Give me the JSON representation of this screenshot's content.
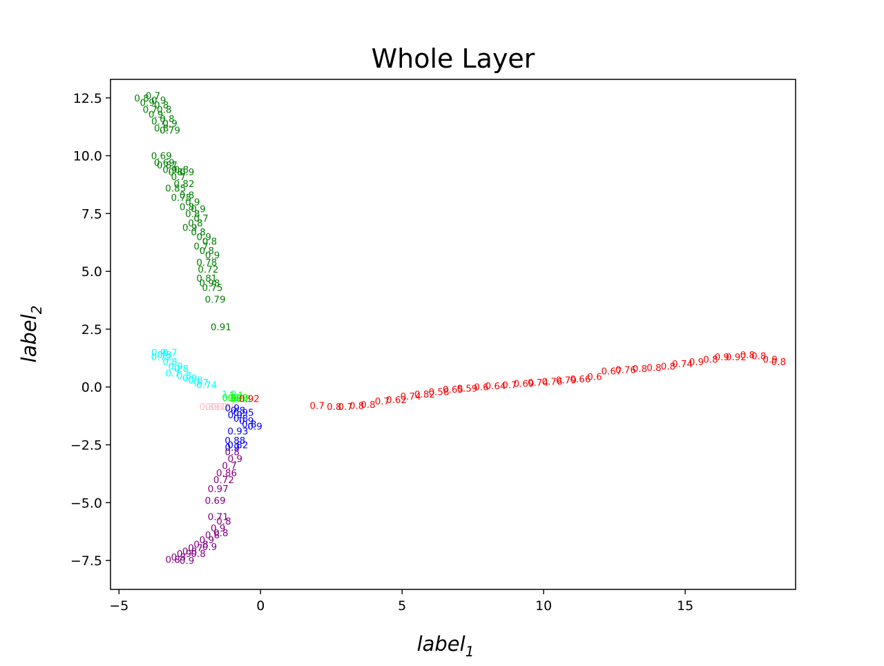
{
  "chart_data": {
    "type": "scatter",
    "title": "Whole Layer",
    "xlabel": "label",
    "xlabel_sub": "1",
    "ylabel": "label",
    "ylabel_sub": "2",
    "xlim": [
      -5.3,
      18.9
    ],
    "ylim": [
      -8.75,
      13.3
    ],
    "xticks": [
      -5,
      0,
      5,
      10,
      15
    ],
    "xtick_labels": [
      "−5",
      "0",
      "5",
      "10",
      "15"
    ],
    "yticks": [
      -7.5,
      -5.0,
      -2.5,
      0.0,
      2.5,
      5.0,
      7.5,
      10.0,
      12.5
    ],
    "ytick_labels": [
      "−7.5",
      "−5.0",
      "−2.5",
      "0.0",
      "2.5",
      "5.0",
      "7.5",
      "10.0",
      "12.5"
    ],
    "grid": false,
    "legend": "none",
    "series": [
      {
        "color": "#008000",
        "points": [
          [
            -4.2,
            12.5,
            0.8
          ],
          [
            -4.0,
            12.3,
            0.9
          ],
          [
            -3.8,
            12.6,
            0.7
          ],
          [
            -3.6,
            12.4,
            0.9
          ],
          [
            -3.5,
            12.2,
            0.8
          ],
          [
            -3.9,
            12.0,
            0.7
          ],
          [
            -3.4,
            12.0,
            0.8
          ],
          [
            -3.7,
            11.8,
            0.9
          ],
          [
            -3.3,
            11.6,
            0.8
          ],
          [
            -3.6,
            11.5,
            0.7
          ],
          [
            -3.2,
            11.4,
            0.9
          ],
          [
            -3.5,
            11.2,
            0.8
          ],
          [
            -3.2,
            11.1,
            0.79
          ],
          [
            -3.5,
            10.0,
            0.69
          ],
          [
            -3.4,
            9.7,
            0.69
          ],
          [
            -3.3,
            9.6,
            0.87
          ],
          [
            -3.2,
            9.4,
            0.9
          ],
          [
            -3.0,
            9.3,
            0.8
          ],
          [
            -2.8,
            9.4,
            0.8
          ],
          [
            -2.6,
            9.3,
            0.9
          ],
          [
            -2.9,
            9.1,
            0.7
          ],
          [
            -2.7,
            8.8,
            0.82
          ],
          [
            -3.0,
            8.6,
            0.85
          ],
          [
            -2.6,
            8.3,
            0.8
          ],
          [
            -2.8,
            8.2,
            0.75
          ],
          [
            -2.4,
            8.0,
            0.9
          ],
          [
            -2.6,
            7.8,
            0.8
          ],
          [
            -2.2,
            7.7,
            0.9
          ],
          [
            -2.4,
            7.5,
            0.8
          ],
          [
            -2.1,
            7.3,
            0.7
          ],
          [
            -2.3,
            7.1,
            0.8
          ],
          [
            -2.5,
            6.9,
            0.9
          ],
          [
            -2.2,
            6.7,
            0.8
          ],
          [
            -2.0,
            6.5,
            0.9
          ],
          [
            -1.8,
            6.3,
            0.8
          ],
          [
            -2.1,
            6.1,
            0.7
          ],
          [
            -1.9,
            5.9,
            0.8
          ],
          [
            -1.7,
            5.7,
            0.9
          ],
          [
            -1.9,
            5.4,
            0.78
          ],
          [
            -1.85,
            5.1,
            0.72
          ],
          [
            -1.9,
            4.7,
            0.81
          ],
          [
            -1.8,
            4.5,
            0.98
          ],
          [
            -1.7,
            4.3,
            0.75
          ],
          [
            -1.6,
            3.8,
            0.79
          ],
          [
            -1.4,
            2.6,
            0.91
          ]
        ]
      },
      {
        "color": "#00ffff",
        "points": [
          [
            -3.6,
            1.5,
            0.9
          ],
          [
            -3.4,
            1.4,
            0.8
          ],
          [
            -3.2,
            1.5,
            0.7
          ],
          [
            -3.5,
            1.3,
            0.72
          ],
          [
            -3.2,
            1.1,
            0.8
          ],
          [
            -3.0,
            0.9,
            0.9
          ],
          [
            -2.8,
            0.8,
            0.8
          ],
          [
            -3.1,
            0.6,
            0.7
          ],
          [
            -2.7,
            0.5,
            0.8
          ],
          [
            -2.5,
            0.4,
            0.9
          ],
          [
            -2.3,
            0.3,
            0.8
          ],
          [
            -2.1,
            0.2,
            0.7
          ],
          [
            -1.9,
            0.1,
            0.74
          ],
          [
            -1.1,
            -0.3,
            1.2
          ]
        ]
      },
      {
        "color": "#00ff00",
        "points": [
          [
            -1.1,
            -0.45,
            0.9
          ],
          [
            -1.0,
            -0.5,
            1.0
          ],
          [
            -0.9,
            -0.45,
            0.9
          ],
          [
            -0.8,
            -0.5,
            0.8
          ],
          [
            -0.7,
            -0.45,
            0.9
          ],
          [
            -0.85,
            -0.35,
            1.1
          ],
          [
            -0.6,
            -0.5,
            0.8
          ]
        ]
      },
      {
        "color": "#ff0000",
        "points": [
          [
            -0.4,
            -0.5,
            0.92
          ],
          [
            2.0,
            -0.8,
            0.7
          ],
          [
            2.6,
            -0.85,
            0.8
          ],
          [
            3.0,
            -0.85,
            0.7
          ],
          [
            3.4,
            -0.8,
            0.8
          ],
          [
            3.8,
            -0.75,
            0.8
          ],
          [
            4.3,
            -0.6,
            0.7
          ],
          [
            4.8,
            -0.55,
            0.62
          ],
          [
            5.3,
            -0.4,
            0.74
          ],
          [
            5.8,
            -0.3,
            0.82
          ],
          [
            6.3,
            -0.2,
            0.58
          ],
          [
            6.8,
            -0.1,
            0.65
          ],
          [
            7.3,
            -0.05,
            0.59
          ],
          [
            7.8,
            0.0,
            0.6
          ],
          [
            8.3,
            0.05,
            0.64
          ],
          [
            8.8,
            0.1,
            0.7
          ],
          [
            9.3,
            0.15,
            0.69
          ],
          [
            9.8,
            0.2,
            0.74
          ],
          [
            10.3,
            0.25,
            0.76
          ],
          [
            10.8,
            0.3,
            0.79
          ],
          [
            11.3,
            0.35,
            0.66
          ],
          [
            11.8,
            0.45,
            0.6
          ],
          [
            12.4,
            0.7,
            0.67
          ],
          [
            12.9,
            0.75,
            0.76
          ],
          [
            13.4,
            0.8,
            0.8
          ],
          [
            13.9,
            0.85,
            0.8
          ],
          [
            14.4,
            0.9,
            0.8
          ],
          [
            14.9,
            1.0,
            0.74
          ],
          [
            15.4,
            1.1,
            0.9
          ],
          [
            15.9,
            1.2,
            0.8
          ],
          [
            16.3,
            1.3,
            0.9
          ],
          [
            16.8,
            1.3,
            0.92
          ],
          [
            17.2,
            1.4,
            0.8
          ],
          [
            17.6,
            1.35,
            0.8
          ],
          [
            18.0,
            1.2,
            0.9
          ],
          [
            18.3,
            1.1,
            0.8
          ]
        ]
      },
      {
        "color": "#ffc0cb",
        "points": [
          [
            -1.9,
            -0.85,
            0.8
          ],
          [
            -1.7,
            -0.85,
            0.9
          ],
          [
            -1.5,
            -0.85,
            0.7
          ],
          [
            -1.3,
            -0.85,
            0.8
          ],
          [
            -1.1,
            -0.85,
            0.9
          ]
        ]
      },
      {
        "color": "#0000ff",
        "points": [
          [
            -1.0,
            -0.9,
            0.9
          ],
          [
            -0.8,
            -1.0,
            0.8
          ],
          [
            -0.6,
            -1.1,
            0.95
          ],
          [
            -0.9,
            -1.2,
            0.9
          ],
          [
            -0.7,
            -1.35,
            0.8
          ],
          [
            -0.5,
            -1.45,
            0.9
          ],
          [
            -0.4,
            -1.6,
            0.8
          ],
          [
            -0.2,
            -1.7,
            0.9
          ],
          [
            -0.8,
            -1.9,
            0.93
          ],
          [
            -0.9,
            -2.3,
            0.88
          ],
          [
            -0.8,
            -2.5,
            0.82
          ],
          [
            -1.0,
            -2.6,
            0.9
          ]
        ]
      },
      {
        "color": "#800080",
        "points": [
          [
            -1.0,
            -2.8,
            0.8
          ],
          [
            -0.9,
            -3.1,
            0.9
          ],
          [
            -1.1,
            -3.4,
            0.7
          ],
          [
            -1.2,
            -3.7,
            0.86
          ],
          [
            -1.3,
            -4.0,
            0.72
          ],
          [
            -1.5,
            -4.4,
            0.97
          ],
          [
            -1.6,
            -4.9,
            0.69
          ],
          [
            -1.5,
            -5.6,
            0.71
          ],
          [
            -1.3,
            -5.8,
            0.8
          ],
          [
            -1.5,
            -6.1,
            0.9
          ],
          [
            -1.7,
            -6.4,
            0.8
          ],
          [
            -1.9,
            -6.6,
            0.9
          ],
          [
            -2.1,
            -6.8,
            0.8
          ],
          [
            -2.3,
            -6.95,
            0.7
          ],
          [
            -2.5,
            -7.1,
            0.8
          ],
          [
            -2.7,
            -7.2,
            0.9
          ],
          [
            -2.9,
            -7.35,
            0.8
          ],
          [
            -3.1,
            -7.45,
            0.8
          ],
          [
            -2.6,
            -7.5,
            0.9
          ],
          [
            -2.2,
            -7.2,
            0.8
          ],
          [
            -1.8,
            -6.9,
            0.9
          ],
          [
            -1.4,
            -6.3,
            0.8
          ]
        ]
      }
    ]
  }
}
